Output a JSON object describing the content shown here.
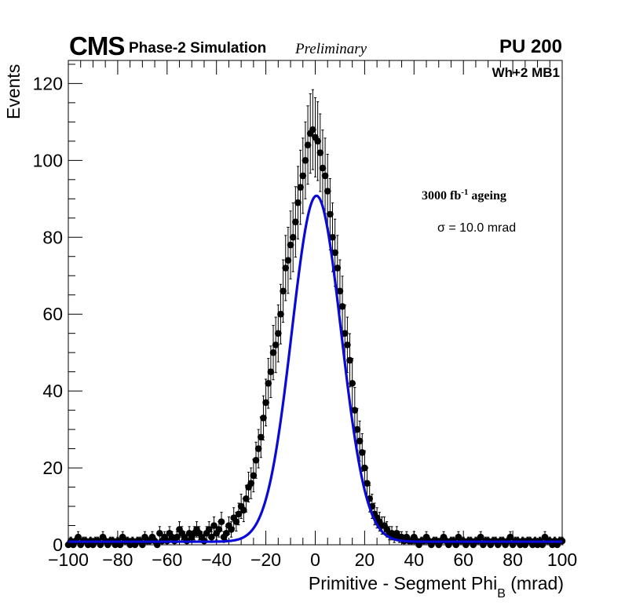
{
  "header": {
    "experiment": "CMS",
    "subtitle": "Phase-2 Simulation",
    "status": "Preliminary",
    "pileup": "PU 200",
    "station": "Wh+2 MB1"
  },
  "annotations": {
    "ageing_prefix": "3000 fb",
    "ageing_exp": "-1",
    "ageing_suffix": " ageing",
    "sigma_text": "σ = 10.0 mrad"
  },
  "colors": {
    "fit_line": "#0a0ad8",
    "markers": "#000000"
  },
  "chart_data": {
    "type": "scatter",
    "title": "",
    "xlabel": "Primitive - Segment Phi",
    "xlabel_sub": "B",
    "xlabel_unit": " (mrad)",
    "ylabel": "Events",
    "xlim": [
      -100,
      100
    ],
    "ylim": [
      0,
      126
    ],
    "x_ticks": [
      -100,
      -80,
      -60,
      -40,
      -20,
      0,
      20,
      40,
      60,
      80,
      100
    ],
    "x_tick_labels": [
      "−100",
      "−80",
      "−60",
      "−40",
      "−20",
      "0",
      "20",
      "40",
      "60",
      "80",
      "100"
    ],
    "y_ticks": [
      0,
      20,
      40,
      60,
      80,
      100,
      120
    ],
    "y_tick_labels": [
      "0",
      "20",
      "40",
      "60",
      "80",
      "100",
      "120"
    ],
    "series": [
      {
        "name": "data",
        "style": "points_with_errors",
        "x": [
          -100,
          -99,
          -98,
          -97,
          -96,
          -95,
          -94,
          -93,
          -92,
          -91,
          -90,
          -89,
          -88,
          -87,
          -86,
          -85,
          -84,
          -83,
          -82,
          -81,
          -80,
          -79,
          -78,
          -77,
          -76,
          -75,
          -74,
          -73,
          -72,
          -71,
          -70,
          -69,
          -68,
          -67,
          -66,
          -65,
          -64,
          -63,
          -62,
          -61,
          -60,
          -59,
          -58,
          -57,
          -56,
          -55,
          -54,
          -53,
          -52,
          -51,
          -50,
          -49,
          -48,
          -47,
          -46,
          -45,
          -44,
          -43,
          -42,
          -41,
          -40,
          -39,
          -38,
          -37,
          -36,
          -35,
          -34,
          -33,
          -32,
          -31,
          -30,
          -29,
          -28,
          -27,
          -26,
          -25,
          -24,
          -23,
          -22,
          -21,
          -20,
          -19,
          -18,
          -17,
          -16,
          -15,
          -14,
          -13,
          -12,
          -11,
          -10,
          -9,
          -8,
          -7,
          -6,
          -5,
          -4,
          -3,
          -2,
          -1,
          0,
          1,
          2,
          3,
          4,
          5,
          6,
          7,
          8,
          9,
          10,
          11,
          12,
          13,
          14,
          15,
          16,
          17,
          18,
          19,
          20,
          21,
          22,
          23,
          24,
          25,
          26,
          27,
          28,
          29,
          30,
          31,
          32,
          33,
          34,
          35,
          36,
          37,
          38,
          39,
          40,
          41,
          42,
          43,
          44,
          45,
          46,
          47,
          48,
          49,
          50,
          51,
          52,
          53,
          54,
          55,
          56,
          57,
          58,
          59,
          60,
          61,
          62,
          63,
          64,
          65,
          66,
          67,
          68,
          69,
          70,
          71,
          72,
          73,
          74,
          75,
          76,
          77,
          78,
          79,
          80,
          81,
          82,
          83,
          84,
          85,
          86,
          87,
          88,
          89,
          90,
          91,
          92,
          93,
          94,
          95,
          96,
          97,
          98,
          99,
          100
        ],
        "y": [
          0,
          1,
          0,
          1,
          2,
          0,
          1,
          1,
          0,
          1,
          0,
          1,
          1,
          0,
          2,
          1,
          0,
          1,
          1,
          0,
          1,
          0,
          2,
          1,
          1,
          0,
          1,
          0,
          1,
          1,
          0,
          2,
          1,
          1,
          2,
          1,
          0,
          3,
          1,
          2,
          1,
          3,
          2,
          1,
          2,
          4,
          3,
          2,
          1,
          3,
          2,
          3,
          4,
          3,
          2,
          1,
          3,
          4,
          2,
          5,
          3,
          4,
          6,
          2,
          3,
          5,
          4,
          7,
          6,
          8,
          10,
          9,
          12,
          15,
          16,
          18,
          22,
          25,
          28,
          33,
          37,
          42,
          45,
          50,
          52,
          55,
          60,
          66,
          72,
          74,
          78,
          80,
          84,
          89,
          93,
          96,
          100,
          104,
          107,
          108,
          106,
          105,
          102,
          98,
          96,
          92,
          86,
          80,
          76,
          72,
          66,
          62,
          55,
          52,
          48,
          42,
          35,
          30,
          27,
          24,
          20,
          16,
          12,
          10,
          8,
          7,
          6,
          5,
          5,
          4,
          3,
          3,
          2,
          3,
          2,
          2,
          1,
          2,
          1,
          1,
          2,
          1,
          0,
          1,
          1,
          2,
          1,
          0,
          1,
          1,
          0,
          1,
          2,
          1,
          0,
          1,
          1,
          0,
          2,
          1,
          1,
          0,
          1,
          1,
          0,
          1,
          1,
          2,
          0,
          1,
          1,
          0,
          1,
          1,
          0,
          1,
          1,
          0,
          1,
          2,
          0,
          1,
          1,
          0,
          1,
          0,
          1,
          1,
          0,
          1,
          0,
          1,
          0,
          2,
          1,
          1,
          0,
          1,
          0,
          1,
          1
        ]
      },
      {
        "name": "gaussian fit",
        "style": "line",
        "amplitude": 90,
        "mean": 0.5,
        "sigma": 10.0,
        "baseline": 0.8
      }
    ]
  }
}
